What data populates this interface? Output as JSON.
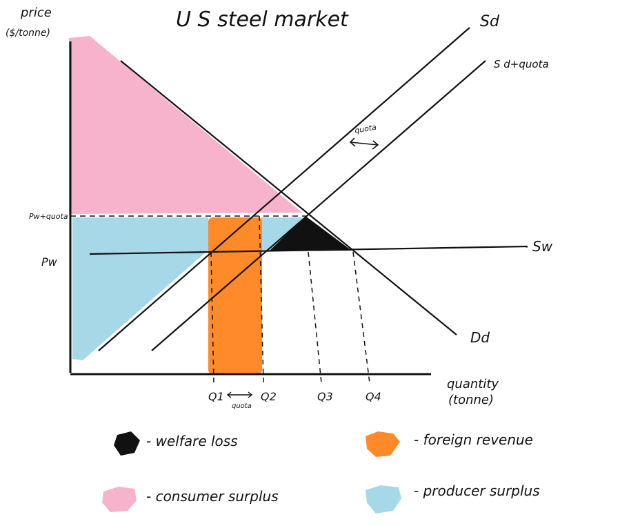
{
  "title": "U S steel market",
  "axes": {
    "y_label_line1": "price",
    "y_label_line2": "($/tonne)",
    "x_label_line1": "quantity",
    "x_label_line2": "(tonne)"
  },
  "price_labels": {
    "p_with_quota": "Pw+quota",
    "p_world": "Pw"
  },
  "quantity_labels": {
    "q1": "Q1",
    "q2": "Q2",
    "q3": "Q3",
    "q4": "Q4",
    "quota_between": "quota"
  },
  "curve_labels": {
    "supply_domestic": "Sd",
    "supply_quota": "S d+quota",
    "supply_world": "Sw",
    "demand_domestic": "Dd",
    "quota_shift": "quota"
  },
  "legend": {
    "welfare_loss": "- welfare loss",
    "foreign_revenue": "- foreign revenue",
    "consumer_surplus": "- consumer surplus",
    "producer_surplus": "- producer surplus"
  },
  "colors": {
    "welfare_loss": "#111111",
    "foreign_revenue": "#ff8a2a",
    "consumer_surplus": "#f7b3cb",
    "producer_surplus": "#a6d8e8",
    "line": "#111111"
  }
}
